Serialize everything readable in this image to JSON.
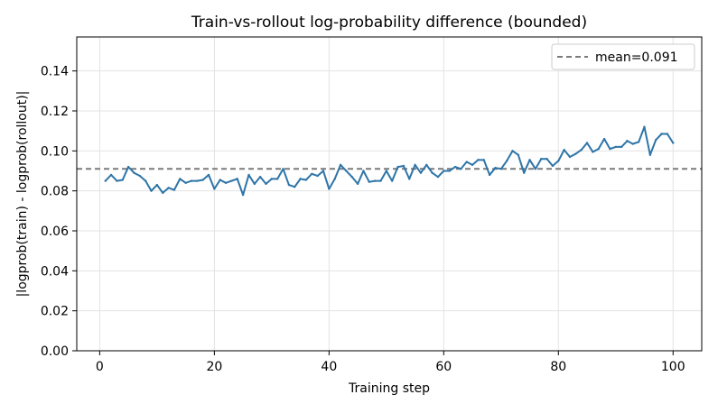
{
  "chart_data": {
    "type": "line",
    "title": "Train-vs-rollout log-probability difference (bounded)",
    "xlabel": "Training step",
    "ylabel": "|logprob(train) - logprob(rollout)|",
    "xlim": [
      -4,
      105
    ],
    "ylim": [
      0.0,
      0.157
    ],
    "x_ticks": [
      0,
      20,
      40,
      60,
      80,
      100
    ],
    "y_ticks": [
      0.0,
      0.02,
      0.04,
      0.06,
      0.08,
      0.1,
      0.12,
      0.14
    ],
    "x_tick_labels": [
      "0",
      "20",
      "40",
      "60",
      "80",
      "100"
    ],
    "y_tick_labels": [
      "0.00",
      "0.02",
      "0.04",
      "0.06",
      "0.08",
      "0.10",
      "0.12",
      "0.14"
    ],
    "grid": true,
    "legend_position": "top-right",
    "series": [
      {
        "color": "#2e75a8",
        "x": [
          1,
          2,
          3,
          4,
          5,
          6,
          7,
          8,
          9,
          10,
          11,
          12,
          13,
          14,
          15,
          16,
          17,
          18,
          19,
          20,
          21,
          22,
          23,
          24,
          25,
          26,
          27,
          28,
          29,
          30,
          31,
          32,
          33,
          34,
          35,
          36,
          37,
          38,
          39,
          40,
          41,
          42,
          43,
          44,
          45,
          46,
          47,
          48,
          49,
          50,
          51,
          52,
          53,
          54,
          55,
          56,
          57,
          58,
          59,
          60,
          61,
          62,
          63,
          64,
          65,
          66,
          67,
          68,
          69,
          70,
          71,
          72,
          73,
          74,
          75,
          76,
          77,
          78,
          79,
          80,
          81,
          82,
          83,
          84,
          85,
          86,
          87,
          88,
          89,
          90,
          91,
          92,
          93,
          94,
          95,
          96,
          97,
          98,
          99,
          100
        ],
        "y": [
          0.085,
          0.088,
          0.085,
          0.0855,
          0.092,
          0.089,
          0.0875,
          0.085,
          0.08,
          0.083,
          0.079,
          0.0815,
          0.0805,
          0.086,
          0.084,
          0.085,
          0.085,
          0.0855,
          0.088,
          0.081,
          0.0855,
          0.084,
          0.085,
          0.086,
          0.078,
          0.088,
          0.0835,
          0.087,
          0.0835,
          0.086,
          0.086,
          0.091,
          0.083,
          0.082,
          0.086,
          0.0855,
          0.0885,
          0.0875,
          0.09,
          0.081,
          0.086,
          0.093,
          0.09,
          0.087,
          0.0835,
          0.09,
          0.0845,
          0.085,
          0.085,
          0.09,
          0.085,
          0.092,
          0.0925,
          0.086,
          0.093,
          0.089,
          0.093,
          0.089,
          0.087,
          0.09,
          0.09,
          0.092,
          0.091,
          0.0945,
          0.093,
          0.0955,
          0.0955,
          0.088,
          0.0915,
          0.091,
          0.095,
          0.1,
          0.098,
          0.089,
          0.0955,
          0.091,
          0.096,
          0.096,
          0.0925,
          0.095,
          0.1005,
          0.097,
          0.0985,
          0.1005,
          0.104,
          0.0995,
          0.101,
          0.106,
          0.101,
          0.102,
          0.102,
          0.105,
          0.1035,
          0.1045,
          0.112,
          0.098,
          0.1055,
          0.1085,
          0.1085,
          0.104
        ]
      }
    ],
    "reference_lines": [
      {
        "type": "horizontal",
        "y": 0.091,
        "style": "dashed",
        "color": "#7a7a7a",
        "label": "mean=0.091"
      }
    ]
  }
}
